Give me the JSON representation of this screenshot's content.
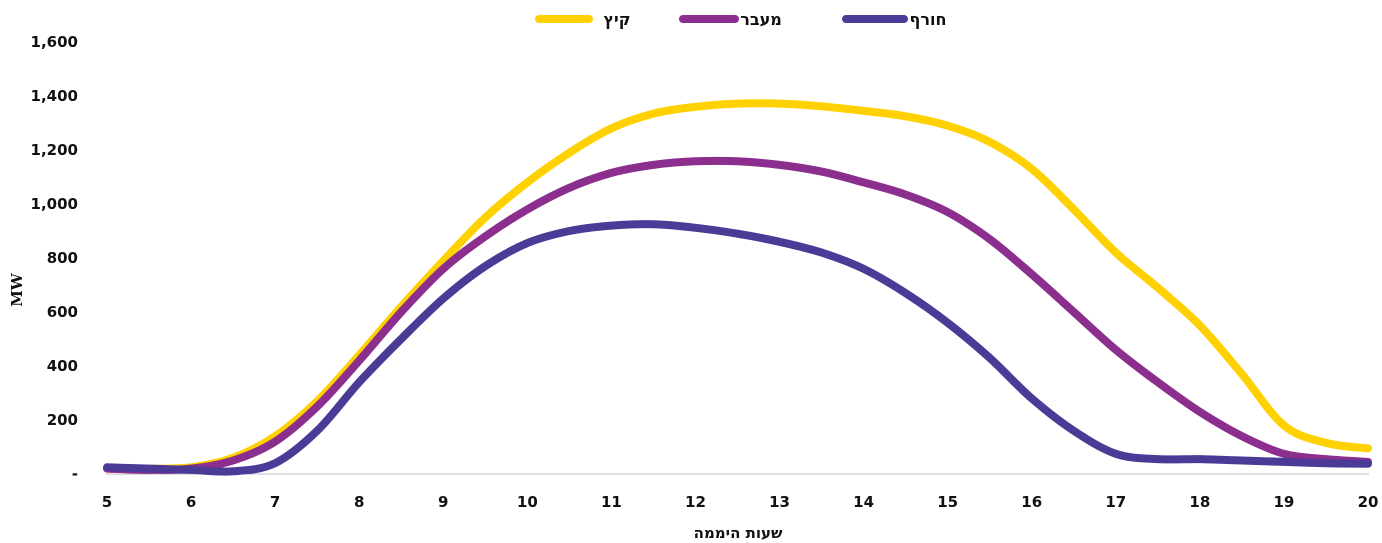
{
  "chart_data": {
    "type": "line",
    "xlabel": "שעות היממה",
    "ylabel": "MW",
    "xlim": [
      5,
      20
    ],
    "ylim": [
      0,
      1600
    ],
    "x_ticks": [
      "5",
      "6",
      "7",
      "8",
      "9",
      "10",
      "11",
      "12",
      "13",
      "14",
      "15",
      "16",
      "17",
      "18",
      "19",
      "20"
    ],
    "y_ticks": [
      {
        "value": 0,
        "label": "-"
      },
      {
        "value": 200,
        "label": "200"
      },
      {
        "value": 400,
        "label": "400"
      },
      {
        "value": 600,
        "label": "600"
      },
      {
        "value": 800,
        "label": "800"
      },
      {
        "value": 1000,
        "label": "1,000"
      },
      {
        "value": 1200,
        "label": "1,200"
      },
      {
        "value": 1400,
        "label": "1,400"
      },
      {
        "value": 1600,
        "label": "1,600"
      }
    ],
    "grid": false,
    "legend": "top-center",
    "series": [
      {
        "name": "קיץ",
        "color": "#FFD100",
        "points": [
          [
            5,
            20
          ],
          [
            5.5,
            20
          ],
          [
            6,
            25
          ],
          [
            6.5,
            60
          ],
          [
            7,
            140
          ],
          [
            7.5,
            270
          ],
          [
            8,
            440
          ],
          [
            8.5,
            620
          ],
          [
            9,
            790
          ],
          [
            9.5,
            950
          ],
          [
            10,
            1080
          ],
          [
            10.5,
            1190
          ],
          [
            11,
            1280
          ],
          [
            11.5,
            1335
          ],
          [
            12,
            1360
          ],
          [
            12.5,
            1372
          ],
          [
            13,
            1372
          ],
          [
            13.5,
            1362
          ],
          [
            14,
            1345
          ],
          [
            14.5,
            1325
          ],
          [
            15,
            1290
          ],
          [
            15.5,
            1230
          ],
          [
            16,
            1130
          ],
          [
            16.5,
            980
          ],
          [
            17,
            820
          ],
          [
            17.5,
            690
          ],
          [
            18,
            550
          ],
          [
            18.5,
            370
          ],
          [
            19,
            180
          ],
          [
            19.5,
            115
          ],
          [
            20,
            95
          ]
        ]
      },
      {
        "name": "מעבר",
        "color": "#8B2E8E",
        "points": [
          [
            5,
            20
          ],
          [
            5.5,
            15
          ],
          [
            6,
            20
          ],
          [
            6.5,
            50
          ],
          [
            7,
            120
          ],
          [
            7.5,
            250
          ],
          [
            8,
            420
          ],
          [
            8.5,
            600
          ],
          [
            9,
            760
          ],
          [
            9.5,
            880
          ],
          [
            10,
            980
          ],
          [
            10.5,
            1060
          ],
          [
            11,
            1115
          ],
          [
            11.5,
            1145
          ],
          [
            12,
            1158
          ],
          [
            12.5,
            1158
          ],
          [
            13,
            1145
          ],
          [
            13.5,
            1120
          ],
          [
            14,
            1080
          ],
          [
            14.5,
            1035
          ],
          [
            15,
            970
          ],
          [
            15.5,
            870
          ],
          [
            16,
            740
          ],
          [
            16.5,
            600
          ],
          [
            17,
            460
          ],
          [
            17.5,
            340
          ],
          [
            18,
            230
          ],
          [
            18.5,
            140
          ],
          [
            19,
            75
          ],
          [
            19.5,
            55
          ],
          [
            20,
            45
          ]
        ]
      },
      {
        "name": "חורף",
        "color": "#4B3A96",
        "points": [
          [
            5,
            25
          ],
          [
            5.5,
            20
          ],
          [
            6,
            15
          ],
          [
            6.5,
            10
          ],
          [
            7,
            40
          ],
          [
            7.5,
            160
          ],
          [
            8,
            340
          ],
          [
            8.5,
            500
          ],
          [
            9,
            650
          ],
          [
            9.5,
            770
          ],
          [
            10,
            855
          ],
          [
            10.5,
            900
          ],
          [
            11,
            920
          ],
          [
            11.5,
            925
          ],
          [
            12,
            912
          ],
          [
            12.5,
            890
          ],
          [
            13,
            860
          ],
          [
            13.5,
            820
          ],
          [
            14,
            760
          ],
          [
            14.5,
            670
          ],
          [
            15,
            560
          ],
          [
            15.5,
            430
          ],
          [
            16,
            280
          ],
          [
            16.5,
            160
          ],
          [
            17,
            75
          ],
          [
            17.5,
            55
          ],
          [
            18,
            55
          ],
          [
            18.5,
            50
          ],
          [
            19,
            45
          ],
          [
            19.5,
            40
          ],
          [
            20,
            38
          ]
        ]
      }
    ]
  }
}
